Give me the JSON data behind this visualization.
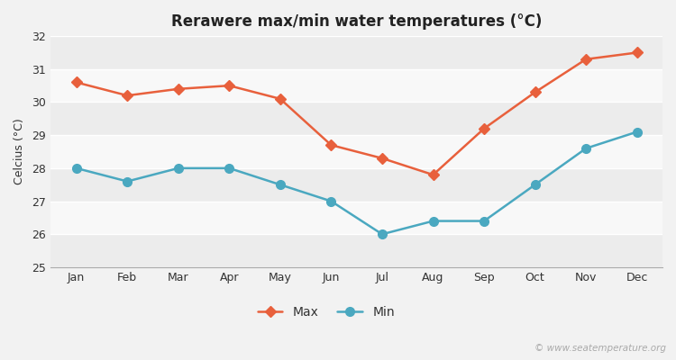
{
  "title": "Rerawere max/min water temperatures (°C)",
  "ylabel": "Celcius (°C)",
  "months": [
    "Jan",
    "Feb",
    "Mar",
    "Apr",
    "May",
    "Jun",
    "Jul",
    "Aug",
    "Sep",
    "Oct",
    "Nov",
    "Dec"
  ],
  "max_values": [
    30.6,
    30.2,
    30.4,
    30.5,
    30.1,
    28.7,
    28.3,
    27.8,
    29.2,
    30.3,
    31.3,
    31.5
  ],
  "min_values": [
    28.0,
    27.6,
    28.0,
    28.0,
    27.5,
    27.0,
    26.0,
    26.4,
    26.4,
    27.5,
    28.6,
    29.1
  ],
  "max_color": "#e8603c",
  "min_color": "#4aa8c0",
  "ylim": [
    25,
    32
  ],
  "yticks": [
    25,
    26,
    27,
    28,
    29,
    30,
    31,
    32
  ],
  "outer_bg": "#f2f2f2",
  "band_light": "#ececec",
  "band_white": "#f8f8f8",
  "grid_line_color": "#ffffff",
  "title_fontsize": 12,
  "label_fontsize": 9,
  "tick_fontsize": 9,
  "legend_fontsize": 10,
  "watermark": "© www.seatemperature.org",
  "marker_max": "D",
  "marker_min": "o",
  "marker_size_max": 6,
  "marker_size_min": 7,
  "linewidth": 1.8
}
